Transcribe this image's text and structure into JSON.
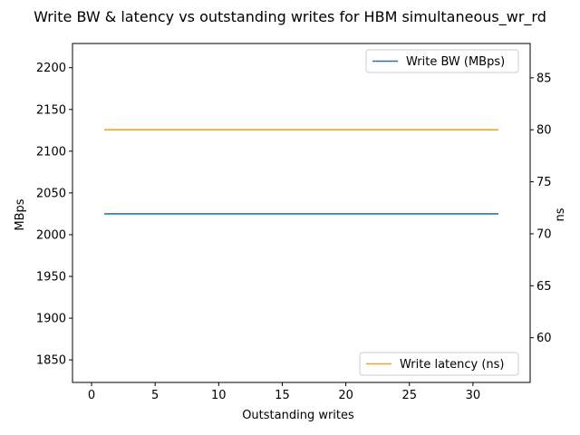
{
  "chart_data": {
    "type": "line",
    "title": "Write BW & latency vs outstanding writes for HBM simultaneous_wr_rd",
    "xlabel": "Outstanding writes",
    "ylabel_left": "MBps",
    "ylabel_right": "ns",
    "xlim": [
      -1.5,
      34.5
    ],
    "ylim_left": [
      1823,
      2229
    ],
    "ylim_right": [
      55.7,
      88.3
    ],
    "x_ticks": [
      0,
      5,
      10,
      15,
      20,
      25,
      30
    ],
    "y_ticks_left": [
      1850,
      1900,
      1950,
      2000,
      2050,
      2100,
      2150,
      2200
    ],
    "y_ticks_right": [
      60,
      65,
      70,
      75,
      80,
      85
    ],
    "grid": false,
    "series": [
      {
        "name": "Write BW (MBps)",
        "axis": "left",
        "color": "#1f77b4",
        "x": [
          1,
          2,
          4,
          8,
          16,
          32
        ],
        "y": [
          2025,
          2025,
          2025,
          2025,
          2025,
          2025
        ],
        "legend_position": "top-right"
      },
      {
        "name": "Write latency (ns)",
        "axis": "right",
        "color": "#ffa500",
        "x": [
          1,
          2,
          4,
          8,
          16,
          32
        ],
        "y": [
          80,
          80,
          80,
          80,
          80,
          80
        ],
        "legend_position": "bottom-right"
      }
    ]
  }
}
